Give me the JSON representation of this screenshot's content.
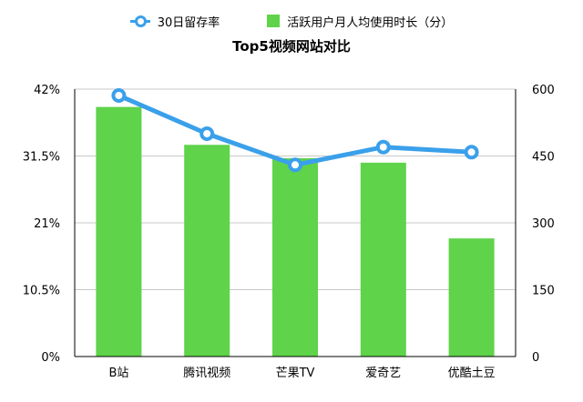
{
  "legend": {
    "line_label": "30日留存率",
    "bar_label": "活跃用户月人均使用时长（分）"
  },
  "colors": {
    "line": "#3aa0ea",
    "bar": "#5fd34a",
    "grid": "#c8c8c8"
  },
  "chart_data": {
    "type": "bar",
    "title": "Top5视频网站对比",
    "categories": [
      "B站",
      "腾讯视频",
      "芒果TV",
      "爱奇艺",
      "优酷土豆"
    ],
    "series": [
      {
        "name": "活跃用户月人均使用时长（分）",
        "type": "bar",
        "axis": "right",
        "values": [
          560,
          475,
          445,
          435,
          265
        ]
      },
      {
        "name": "30日留存率",
        "type": "line",
        "axis": "left",
        "values": [
          41.0,
          35.0,
          30.1,
          32.9,
          32.1
        ]
      }
    ],
    "y_left": {
      "ylim": [
        0,
        42
      ],
      "ticks": [
        "0%",
        "10.5%",
        "21%",
        "31.5%",
        "42%"
      ]
    },
    "y_right": {
      "ylim": [
        0,
        600
      ],
      "ticks": [
        "0",
        "150",
        "300",
        "450",
        "600"
      ]
    },
    "grid": true,
    "legend_position": "top"
  }
}
